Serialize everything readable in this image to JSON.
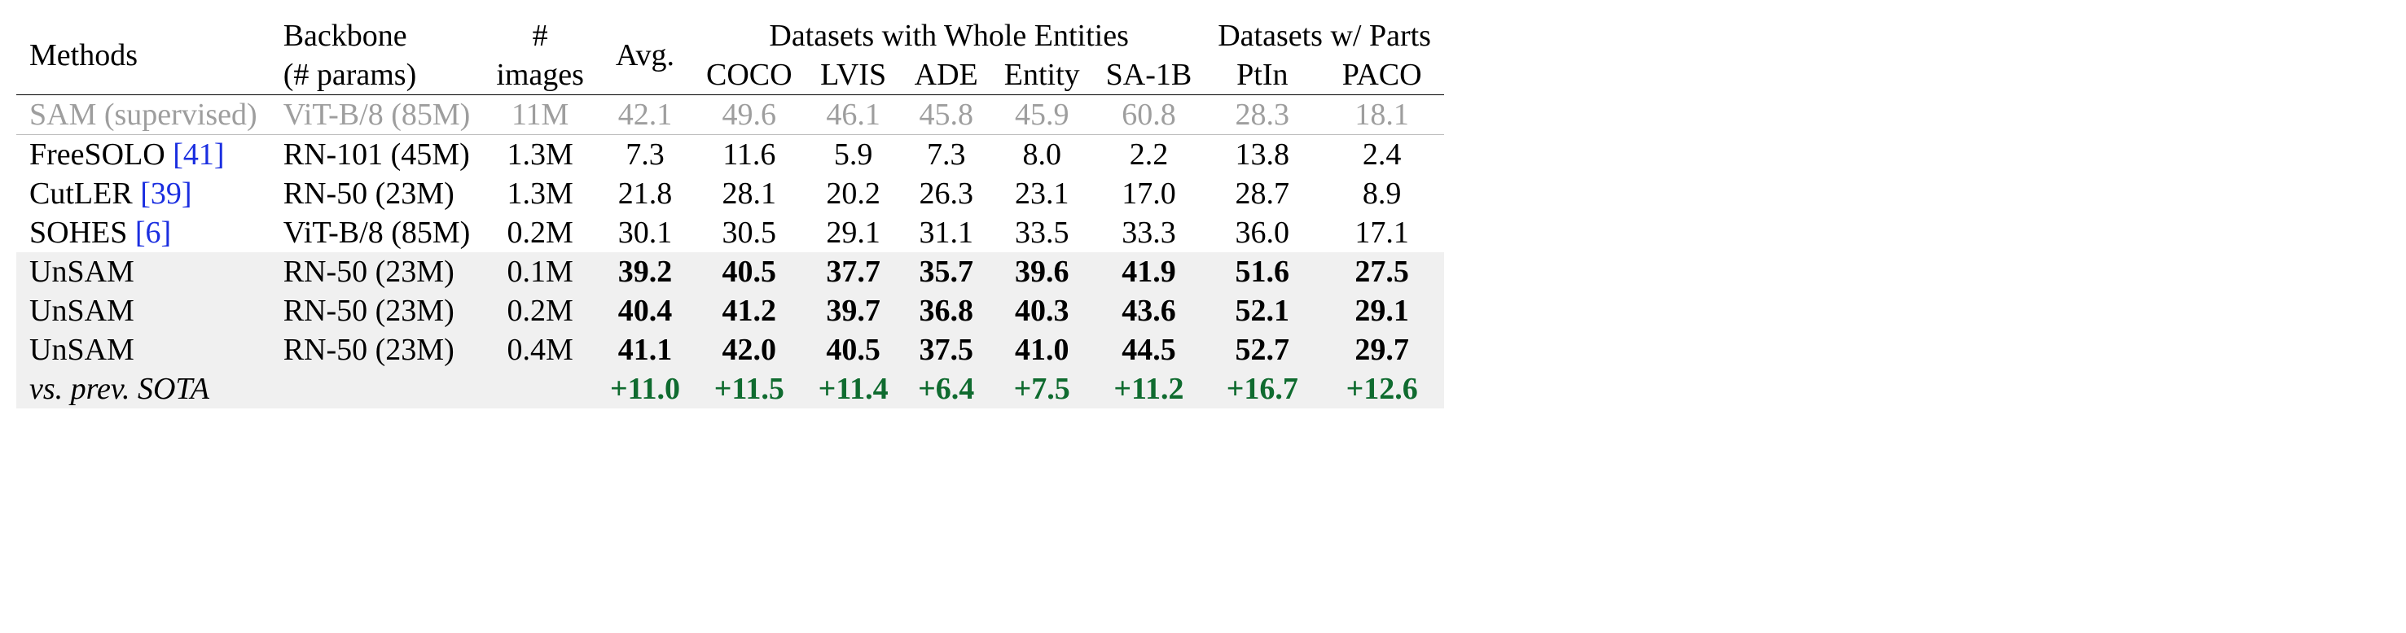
{
  "headers": {
    "methods": "Methods",
    "backbone_top": "Backbone",
    "backbone_bot": "(# params)",
    "images_top": "#",
    "images_bot": "images",
    "avg": "Avg.",
    "whole_group": "Datasets with Whole Entities",
    "parts_group": "Datasets w/ Parts",
    "coco": "COCO",
    "lvis": "LVIS",
    "ade": "ADE",
    "entity": "Entity",
    "sa1b": "SA-1B",
    "ptin": "PtIn",
    "paco": "PACO"
  },
  "rows": [
    {
      "style": "gray",
      "method": "SAM (supervised)",
      "cite": "",
      "backbone": "ViT-B/8 (85M)",
      "images": "11M",
      "vals": [
        "42.1",
        "49.6",
        "46.1",
        "45.8",
        "45.9",
        "60.8",
        "28.3",
        "18.1"
      ]
    },
    {
      "style": "",
      "method": "FreeSOLO ",
      "cite": "[41]",
      "backbone": "RN-101 (45M)",
      "images": "1.3M",
      "vals": [
        "7.3",
        "11.6",
        "5.9",
        "7.3",
        "8.0",
        "2.2",
        "13.8",
        "2.4"
      ]
    },
    {
      "style": "",
      "method": "CutLER ",
      "cite": "[39]",
      "backbone": "RN-50 (23M)",
      "images": "1.3M",
      "vals": [
        "21.8",
        "28.1",
        "20.2",
        "26.3",
        "23.1",
        "17.0",
        "28.7",
        "8.9"
      ]
    },
    {
      "style": "",
      "method": "SOHES ",
      "cite": "[6]",
      "backbone": "ViT-B/8 (85M)",
      "images": "0.2M",
      "vals": [
        "30.1",
        "30.5",
        "29.1",
        "31.1",
        "33.5",
        "33.3",
        "36.0",
        "17.1"
      ]
    },
    {
      "style": "shade bold",
      "method": "UnSAM",
      "cite": "",
      "backbone": "RN-50 (23M)",
      "images": "0.1M",
      "vals": [
        "39.2",
        "40.5",
        "37.7",
        "35.7",
        "39.6",
        "41.9",
        "51.6",
        "27.5"
      ]
    },
    {
      "style": "shade bold",
      "method": "UnSAM",
      "cite": "",
      "backbone": "RN-50 (23M)",
      "images": "0.2M",
      "vals": [
        "40.4",
        "41.2",
        "39.7",
        "36.8",
        "40.3",
        "43.6",
        "52.1",
        "29.1"
      ]
    },
    {
      "style": "shade bold",
      "method": "UnSAM",
      "cite": "",
      "backbone": "RN-50 (23M)",
      "images": "0.4M",
      "vals": [
        "41.1",
        "42.0",
        "40.5",
        "37.5",
        "41.0",
        "44.5",
        "52.7",
        "29.7"
      ]
    }
  ],
  "delta": {
    "label": "vs. prev. SOTA",
    "vals": [
      "+11.0",
      "+11.5",
      "+11.4",
      "+6.4",
      "+7.5",
      "+11.2",
      "+16.7",
      "+12.6"
    ]
  },
  "colors": {
    "text": "#000000",
    "gray": "#9e9e9e",
    "green": "#0f6b2f",
    "cite": "#1a2ee0",
    "shade": "#f0f0f0",
    "rule": "#000000",
    "rule_thin": "#bbbbbb",
    "background": "#ffffff"
  },
  "typography": {
    "font_family": "Times New Roman",
    "base_fontsize_pt": 28
  },
  "layout": {
    "type": "table",
    "n_value_columns": 8,
    "column_align": [
      "left",
      "left",
      "center",
      "center",
      "center",
      "center",
      "center",
      "center",
      "center",
      "center",
      "center"
    ]
  }
}
